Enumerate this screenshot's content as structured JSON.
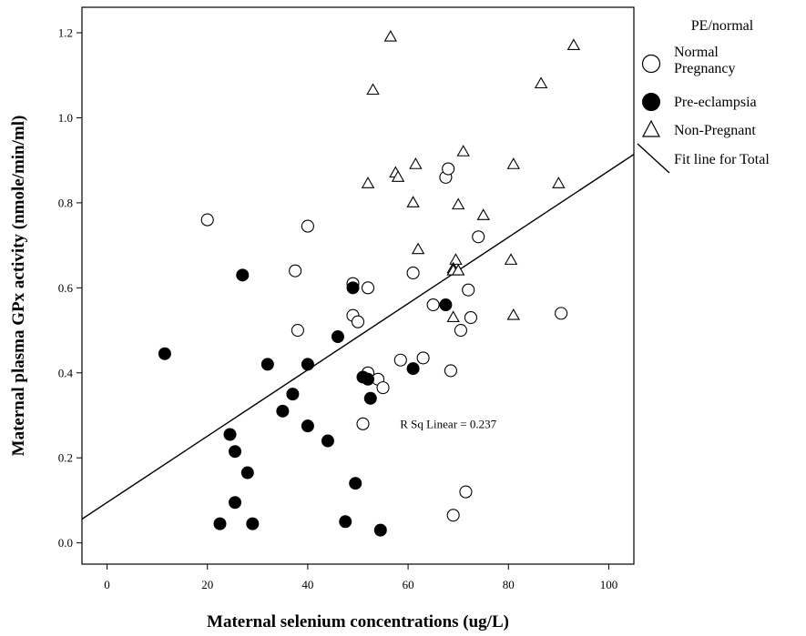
{
  "chart_data": {
    "type": "scatter",
    "xlabel": "Maternal selenium concentrations (ug/L)",
    "ylabel": "Maternal plasma GPx activity (nmole/min/ml)",
    "xlim": [
      -5,
      105
    ],
    "ylim": [
      -0.05,
      1.26
    ],
    "x_ticks": [
      "0",
      "20",
      "40",
      "60",
      "80",
      "100"
    ],
    "y_ticks": [
      "0.0",
      "0.2",
      "0.4",
      "0.6",
      "0.8",
      "1.0",
      "1.2"
    ],
    "legend": {
      "title": "PE/normal",
      "position": "right",
      "entries": [
        {
          "label_lines": [
            "Normal",
            "Pregnancy"
          ],
          "marker": "open-circle"
        },
        {
          "label_lines": [
            "Pre-eclampsia"
          ],
          "marker": "filled-circle"
        },
        {
          "label_lines": [
            "Non-Pregnant"
          ],
          "marker": "open-triangle"
        },
        {
          "label_lines": [
            "Fit line for Total"
          ],
          "marker": "line"
        }
      ]
    },
    "annotation": {
      "text": "R Sq Linear = 0.237",
      "x": 68,
      "y": 0.27
    },
    "fit_line": {
      "intercept": 0.095,
      "slope": 0.0078,
      "x_range": [
        -5,
        105
      ]
    },
    "series": [
      {
        "name": "Normal Pregnancy",
        "marker": "open-circle",
        "points": [
          [
            20,
            0.76
          ],
          [
            40,
            0.745
          ],
          [
            37.5,
            0.64
          ],
          [
            38,
            0.5
          ],
          [
            49,
            0.61
          ],
          [
            52,
            0.6
          ],
          [
            49,
            0.535
          ],
          [
            50,
            0.52
          ],
          [
            52,
            0.4
          ],
          [
            54,
            0.385
          ],
          [
            55,
            0.365
          ],
          [
            51,
            0.28
          ],
          [
            58.5,
            0.43
          ],
          [
            63,
            0.435
          ],
          [
            61,
            0.635
          ],
          [
            65,
            0.56
          ],
          [
            67.5,
            0.86
          ],
          [
            68,
            0.88
          ],
          [
            72,
            0.595
          ],
          [
            72.5,
            0.53
          ],
          [
            70.5,
            0.5
          ],
          [
            68.5,
            0.405
          ],
          [
            74,
            0.72
          ],
          [
            90.5,
            0.54
          ],
          [
            71.5,
            0.12
          ],
          [
            69,
            0.065
          ]
        ]
      },
      {
        "name": "Pre-eclampsia",
        "marker": "filled-circle",
        "points": [
          [
            11.5,
            0.445
          ],
          [
            27,
            0.63
          ],
          [
            32,
            0.42
          ],
          [
            37,
            0.35
          ],
          [
            40,
            0.42
          ],
          [
            35,
            0.31
          ],
          [
            40,
            0.275
          ],
          [
            44,
            0.24
          ],
          [
            46,
            0.485
          ],
          [
            49,
            0.6
          ],
          [
            51,
            0.39
          ],
          [
            52,
            0.385
          ],
          [
            52.5,
            0.34
          ],
          [
            61,
            0.41
          ],
          [
            67.5,
            0.56
          ],
          [
            49.5,
            0.14
          ],
          [
            24.5,
            0.255
          ],
          [
            25.5,
            0.215
          ],
          [
            28,
            0.165
          ],
          [
            25.5,
            0.095
          ],
          [
            22.5,
            0.045
          ],
          [
            29,
            0.045
          ],
          [
            47.5,
            0.05
          ],
          [
            54.5,
            0.03
          ]
        ]
      },
      {
        "name": "Non-Pregnant",
        "marker": "open-triangle",
        "points": [
          [
            56.5,
            1.19
          ],
          [
            53,
            1.065
          ],
          [
            93,
            1.17
          ],
          [
            86.5,
            1.08
          ],
          [
            52,
            0.845
          ],
          [
            57.5,
            0.87
          ],
          [
            58,
            0.86
          ],
          [
            61.5,
            0.89
          ],
          [
            71,
            0.92
          ],
          [
            81,
            0.89
          ],
          [
            90,
            0.845
          ],
          [
            61,
            0.8
          ],
          [
            70,
            0.795
          ],
          [
            75,
            0.77
          ],
          [
            62,
            0.69
          ],
          [
            69.5,
            0.665
          ],
          [
            69,
            0.645
          ],
          [
            69,
            0.64
          ],
          [
            70,
            0.64
          ],
          [
            80.5,
            0.665
          ],
          [
            69,
            0.53
          ],
          [
            81,
            0.535
          ]
        ]
      }
    ]
  }
}
